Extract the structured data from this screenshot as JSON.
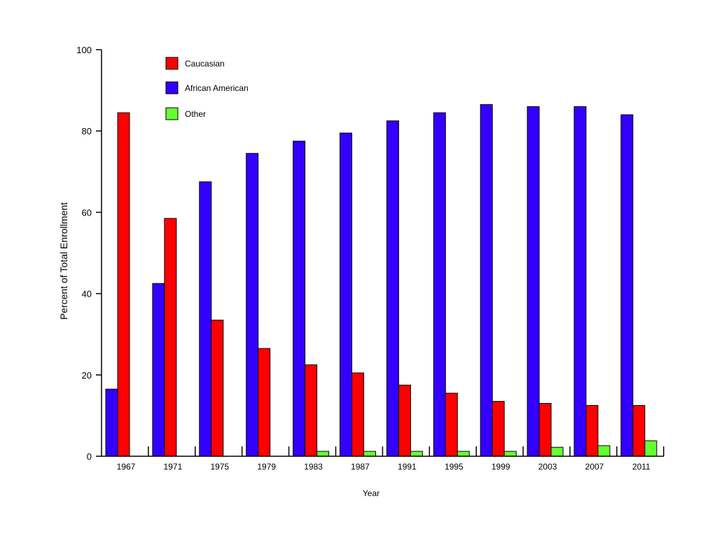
{
  "chart_data": {
    "type": "bar",
    "title": "",
    "xlabel": "Year",
    "ylabel": "Percent of Total Enrollment",
    "ylim": [
      0,
      100
    ],
    "yticks": [
      "0",
      "20",
      "40",
      "60",
      "80",
      "100"
    ],
    "grid": false,
    "legend_position": "top-left",
    "categories": [
      "1967",
      "1971",
      "1975",
      "1979",
      "1983",
      "1987",
      "1991",
      "1995",
      "1999",
      "2003",
      "2007",
      "2011"
    ],
    "series": [
      {
        "name": "Caucasian",
        "color": "#ff0000",
        "values": [
          84.5,
          58.5,
          33.5,
          26.5,
          22.5,
          20.5,
          17.5,
          15.5,
          13.5,
          13,
          12.5,
          12.5
        ]
      },
      {
        "name": "African American",
        "color": "#3300ff",
        "values": [
          16.5,
          42.5,
          67.5,
          74.5,
          77.5,
          79.5,
          82.5,
          84.5,
          86.5,
          86,
          86,
          84
        ]
      },
      {
        "name": "Other",
        "color": "#66ff33",
        "values": [
          0,
          0,
          0,
          0,
          1.2,
          1.2,
          1.2,
          1.2,
          1.2,
          2.2,
          2.6,
          3.8
        ]
      }
    ]
  }
}
